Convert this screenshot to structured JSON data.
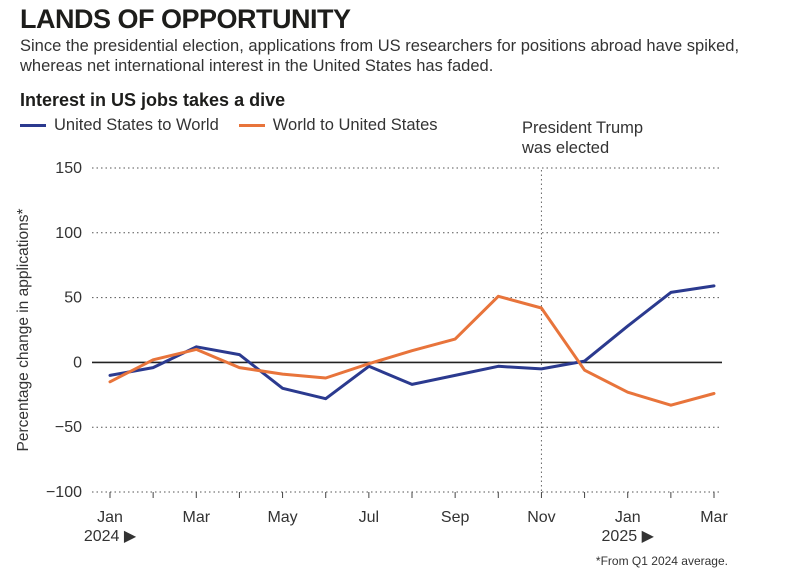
{
  "header": {
    "title": "LANDS OF OPPORTUNITY",
    "subtitle": "Since the presidential election, applications from US researchers for positions abroad have spiked, whereas net international interest in the United States has faded."
  },
  "chart_data": {
    "type": "line",
    "title": "Interest in US jobs takes a dive",
    "ylabel": "Percentage change in applications*",
    "xlabel": "",
    "ylim": [
      -100,
      150
    ],
    "yticks": [
      150,
      100,
      50,
      0,
      -50,
      -100
    ],
    "ytick_labels": [
      "150",
      "100",
      "50",
      "0",
      "−50",
      "−100"
    ],
    "x": [
      "Jan 2024",
      "Feb 2024",
      "Mar 2024",
      "Apr 2024",
      "May 2024",
      "Jun 2024",
      "Jul 2024",
      "Aug 2024",
      "Sep 2024",
      "Oct 2024",
      "Nov 2024",
      "Dec 2024",
      "Jan 2025",
      "Feb 2025",
      "Mar 2025"
    ],
    "xtick_labels": [
      {
        "index": 0,
        "label": "Jan",
        "sublabel": "2024 ▶"
      },
      {
        "index": 2,
        "label": "Mar"
      },
      {
        "index": 4,
        "label": "May"
      },
      {
        "index": 6,
        "label": "Jul"
      },
      {
        "index": 8,
        "label": "Sep"
      },
      {
        "index": 10,
        "label": "Nov"
      },
      {
        "index": 12,
        "label": "Jan",
        "sublabel": "2025 ▶"
      },
      {
        "index": 14,
        "label": "Mar"
      }
    ],
    "series": [
      {
        "name": "United States to World",
        "color": "#2b3a8f",
        "values": [
          -10,
          -4,
          12,
          6,
          -20,
          -28,
          -3,
          -17,
          -10,
          -3,
          -5,
          1,
          28,
          54,
          59
        ]
      },
      {
        "name": "World to United States",
        "color": "#e8743b",
        "values": [
          -15,
          2,
          10,
          -4,
          -9,
          -12,
          -1,
          9,
          18,
          51,
          42,
          -6,
          -23,
          -33,
          -24
        ]
      }
    ],
    "zero_line": true,
    "grid": "dotted horizontal",
    "annotation": {
      "x_index": 10.0,
      "text_lines": [
        "President Trump",
        "was elected"
      ]
    },
    "footnote": "*From Q1 2024 average."
  }
}
